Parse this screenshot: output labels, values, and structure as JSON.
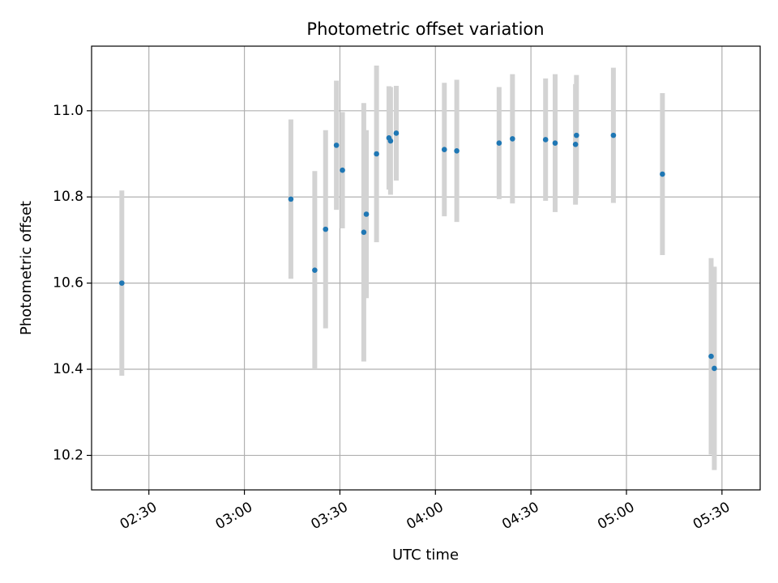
{
  "chart_data": {
    "type": "scatter",
    "title": "Photometric offset variation",
    "xlabel": "UTC time",
    "ylabel": "Photometric offset",
    "grid": true,
    "xlim_minutes": [
      132,
      342
    ],
    "ylim": [
      10.12,
      11.15
    ],
    "x_ticks": [
      {
        "minute": 150,
        "label": "02:30"
      },
      {
        "minute": 180,
        "label": "03:00"
      },
      {
        "minute": 210,
        "label": "03:30"
      },
      {
        "minute": 240,
        "label": "04:00"
      },
      {
        "minute": 270,
        "label": "04:30"
      },
      {
        "minute": 300,
        "label": "05:00"
      },
      {
        "minute": 330,
        "label": "05:30"
      }
    ],
    "y_ticks": [
      {
        "value": 10.2,
        "label": "10.2"
      },
      {
        "value": 10.4,
        "label": "10.4"
      },
      {
        "value": 10.6,
        "label": "10.6"
      },
      {
        "value": 10.8,
        "label": "10.8"
      },
      {
        "value": 11.0,
        "label": "11.0"
      }
    ],
    "colors": {
      "point": "#1f77b4",
      "errorbar": "#d3d3d3",
      "grid": "#b0b0b0",
      "axis": "#000000"
    },
    "points": [
      {
        "t": 141.5,
        "y": 10.6,
        "err": 0.215
      },
      {
        "t": 194.6,
        "y": 10.795,
        "err": 0.185
      },
      {
        "t": 202.1,
        "y": 10.63,
        "err": 0.23
      },
      {
        "t": 205.5,
        "y": 10.725,
        "err": 0.23
      },
      {
        "t": 208.9,
        "y": 10.92,
        "err": 0.15
      },
      {
        "t": 210.8,
        "y": 10.862,
        "err": 0.135
      },
      {
        "t": 217.5,
        "y": 10.718,
        "err": 0.3
      },
      {
        "t": 218.3,
        "y": 10.76,
        "err": 0.195
      },
      {
        "t": 221.5,
        "y": 10.9,
        "err": 0.205
      },
      {
        "t": 225.4,
        "y": 10.937,
        "err": 0.12
      },
      {
        "t": 225.9,
        "y": 10.93,
        "err": 0.125
      },
      {
        "t": 227.7,
        "y": 10.948,
        "err": 0.11
      },
      {
        "t": 242.8,
        "y": 10.91,
        "err": 0.155
      },
      {
        "t": 246.7,
        "y": 10.907,
        "err": 0.165
      },
      {
        "t": 260.0,
        "y": 10.925,
        "err": 0.13
      },
      {
        "t": 264.2,
        "y": 10.935,
        "err": 0.15
      },
      {
        "t": 274.6,
        "y": 10.933,
        "err": 0.142
      },
      {
        "t": 277.6,
        "y": 10.925,
        "err": 0.16
      },
      {
        "t": 284.0,
        "y": 10.922,
        "err": 0.14
      },
      {
        "t": 284.3,
        "y": 10.943,
        "err": 0.14
      },
      {
        "t": 295.9,
        "y": 10.943,
        "err": 0.157
      },
      {
        "t": 311.3,
        "y": 10.853,
        "err": 0.188
      },
      {
        "t": 326.6,
        "y": 10.43,
        "err": 0.228
      },
      {
        "t": 327.6,
        "y": 10.402,
        "err": 0.236
      }
    ]
  }
}
